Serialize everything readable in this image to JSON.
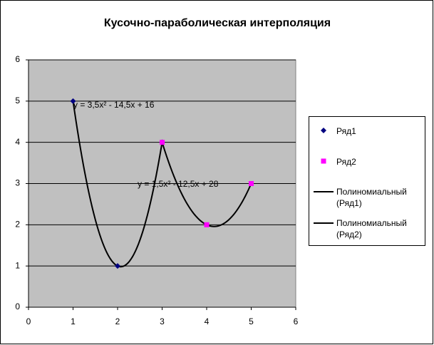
{
  "chart_data": {
    "type": "scatter",
    "title": "Кусочно-параболическая интерполяция",
    "series": [
      {
        "name": "Ряд1",
        "color": "#000080",
        "marker": "diamond",
        "x": [
          1,
          2,
          3
        ],
        "values": [
          5,
          1,
          4
        ]
      },
      {
        "name": "Ряд2",
        "color": "#ff00ff",
        "marker": "square",
        "x": [
          3,
          4,
          5
        ],
        "values": [
          4,
          2,
          3
        ]
      }
    ],
    "trendlines": [
      {
        "name": "Полиномиальный (Ряд1)",
        "color": "#000000",
        "equation": "y = 3,5x² - 14,5x + 16",
        "coefficients": [
          3.5,
          -14.5,
          16
        ],
        "range": [
          1,
          3
        ]
      },
      {
        "name": "Полиномиальный (Ряд2)",
        "color": "#000000",
        "equation": "y = 1,5x² - 12,5x + 28",
        "coefficients": [
          1.5,
          -12.5,
          28
        ],
        "range": [
          3,
          5
        ]
      }
    ],
    "xlim": [
      0,
      6
    ],
    "xticks": [
      0,
      1,
      2,
      3,
      4,
      5,
      6
    ],
    "ylim": [
      0,
      6
    ],
    "yticks": [
      0,
      1,
      2,
      3,
      4,
      5,
      6
    ],
    "grid": true,
    "legend": "right",
    "plot_background": "#c0c0c0"
  }
}
